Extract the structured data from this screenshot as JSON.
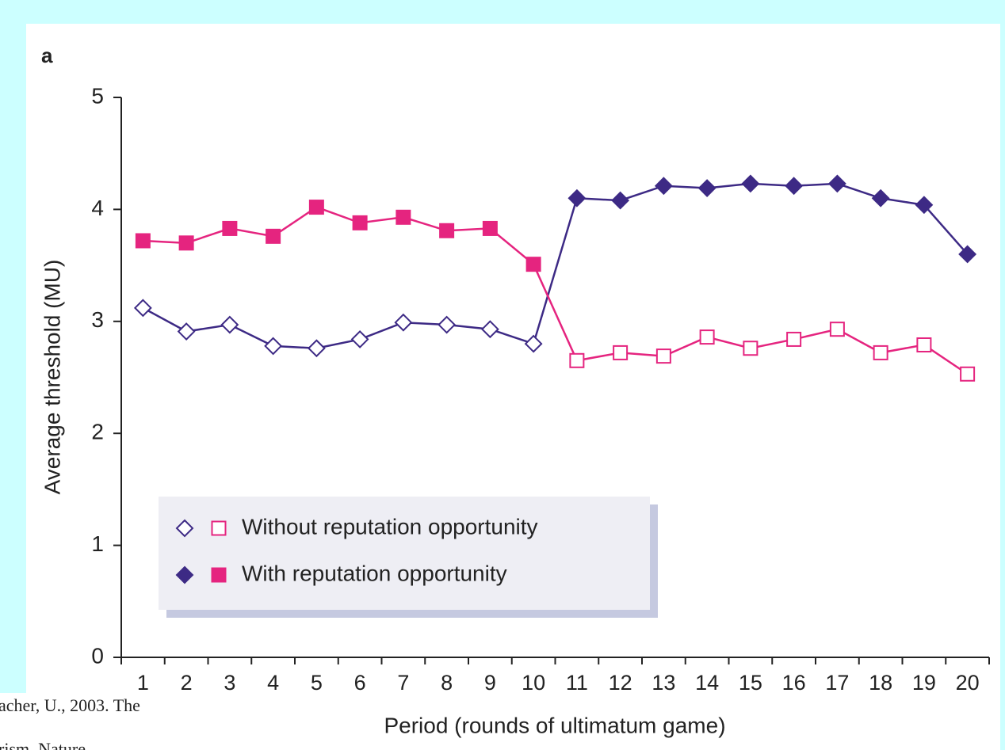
{
  "chart_data": {
    "type": "line",
    "panel_label": "a",
    "ylabel": "Average threshold (MU)",
    "xlabel": "Period (rounds of ultimatum game)",
    "categories": [
      "1",
      "2",
      "3",
      "4",
      "5",
      "6",
      "7",
      "8",
      "9",
      "10",
      "11",
      "12",
      "13",
      "14",
      "15",
      "16",
      "17",
      "18",
      "19",
      "20"
    ],
    "ylim": [
      0,
      5
    ],
    "yticks": [
      0,
      1,
      2,
      3,
      4,
      5
    ],
    "series": [
      {
        "marker": "diamond",
        "color": "#3d2a85",
        "values": [
          3.12,
          2.91,
          2.97,
          2.78,
          2.76,
          2.84,
          2.99,
          2.97,
          2.93,
          2.8,
          4.1,
          4.08,
          4.21,
          4.19,
          4.23,
          4.21,
          4.23,
          4.1,
          4.04,
          3.6
        ],
        "filled": [
          false,
          false,
          false,
          false,
          false,
          false,
          false,
          false,
          false,
          false,
          true,
          true,
          true,
          true,
          true,
          true,
          true,
          true,
          true,
          true
        ]
      },
      {
        "marker": "square",
        "color": "#e5247f",
        "values": [
          3.72,
          3.7,
          3.83,
          3.76,
          4.02,
          3.88,
          3.93,
          3.81,
          3.83,
          3.51,
          2.65,
          2.72,
          2.69,
          2.86,
          2.76,
          2.84,
          2.93,
          2.72,
          2.79,
          2.53
        ],
        "filled": [
          true,
          true,
          true,
          true,
          true,
          true,
          true,
          true,
          true,
          true,
          false,
          false,
          false,
          false,
          false,
          false,
          false,
          false,
          false,
          false
        ]
      }
    ],
    "legend": [
      {
        "label": "Without reputation opportunity",
        "filled": false
      },
      {
        "label": "With reputation opportunity",
        "filled": true
      }
    ]
  },
  "citation_fragment": [
    "acher, U., 2003. The",
    "rism. Nature"
  ]
}
